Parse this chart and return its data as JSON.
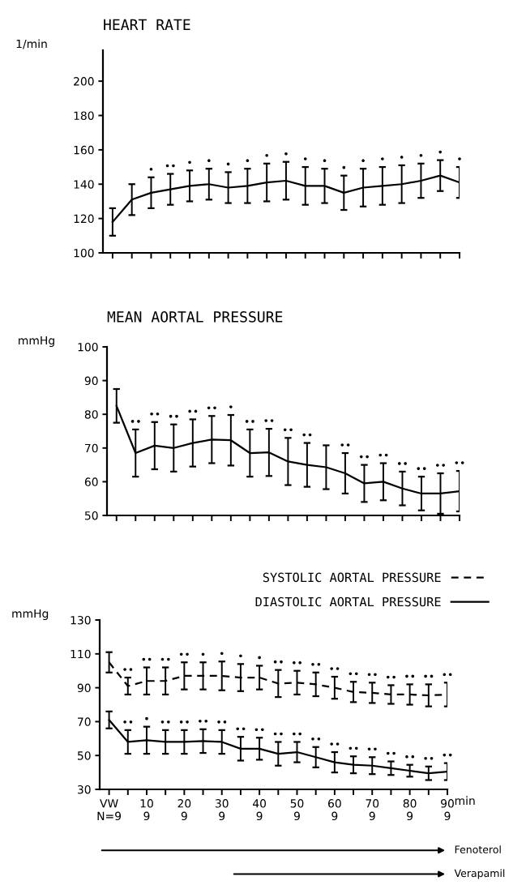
{
  "chart_data": [
    {
      "type": "line",
      "title": "HEART RATE",
      "ylabel": "1/min",
      "categories": [
        null,
        null,
        null,
        null,
        null,
        null,
        null,
        null,
        null,
        null,
        null,
        null,
        null,
        null,
        null,
        null,
        null,
        null,
        null
      ],
      "series": [
        {
          "color": "#000000",
          "line_style": "solid",
          "values": [
            118,
            131,
            135,
            137,
            139,
            140,
            138,
            139,
            141,
            142,
            139,
            139,
            135,
            138,
            139,
            140,
            142,
            145,
            141
          ],
          "errors": [
            8,
            9,
            9,
            9,
            9,
            9,
            9,
            10,
            11,
            11,
            11,
            10,
            10,
            11,
            11,
            11,
            10,
            9,
            9
          ],
          "value_labels": [
            null,
            null,
            "•",
            "••",
            "•",
            "•",
            "•",
            "•",
            "•",
            "•",
            "•",
            "•",
            "•",
            "•",
            "•",
            "•",
            "•",
            "•",
            "•"
          ]
        }
      ],
      "ylim": [
        100,
        218
      ],
      "yticks": [
        100,
        120,
        140,
        160,
        180,
        200
      ],
      "tick_labels": "y",
      "marker": "none",
      "grid": false,
      "legend": false
    },
    {
      "type": "line",
      "title": "MEAN AORTAL PRESSURE",
      "ylabel": "mmHg",
      "categories": [
        null,
        null,
        null,
        null,
        null,
        null,
        null,
        null,
        null,
        null,
        null,
        null,
        null,
        null,
        null,
        null,
        null,
        null,
        null
      ],
      "series": [
        {
          "color": "#000000",
          "line_style": "solid",
          "values": [
            82.5,
            68.5,
            70.7,
            70,
            71.5,
            72.5,
            72.3,
            68.5,
            68.7,
            66,
            65,
            64.3,
            62.5,
            59.5,
            60,
            58,
            56.5,
            56.5,
            57.2
          ],
          "errors": [
            5,
            7,
            7,
            7,
            7,
            7,
            7.5,
            7,
            7,
            7,
            6.5,
            6.5,
            6,
            5.5,
            5.5,
            5,
            5,
            6,
            6
          ],
          "value_labels": [
            null,
            "••",
            "••",
            "••",
            "••",
            "••",
            "•",
            "••",
            "••",
            "••",
            "••",
            null,
            "••",
            "••",
            "••",
            "••",
            "••",
            "••",
            "••"
          ]
        }
      ],
      "ylim": [
        50,
        100
      ],
      "yticks": [
        50,
        60,
        70,
        80,
        90,
        100
      ],
      "tick_labels": "y",
      "marker": "none",
      "grid": false,
      "legend": false
    },
    {
      "type": "line",
      "ylabel": "mmHg",
      "xlabel": "min",
      "categories": [
        "VW\nN=9",
        null,
        "10\n9",
        null,
        "20\n9",
        null,
        "30\n9",
        null,
        "40\n9",
        null,
        "50\n9",
        null,
        "60\n9",
        null,
        "70\n9",
        null,
        "80\n9",
        null,
        "90\n9"
      ],
      "series": [
        {
          "name": "SYSTOLIC AORTAL PRESSURE",
          "color": "#000000",
          "line_style": "dashed",
          "values": [
            105,
            91,
            94,
            94,
            97,
            97,
            97,
            96,
            96,
            92.5,
            93,
            92,
            90,
            87.5,
            87,
            86,
            86,
            85.5,
            86
          ],
          "errors": [
            6,
            5,
            8,
            8,
            8,
            8,
            8.5,
            8,
            7,
            8,
            7,
            7,
            6.5,
            6,
            6,
            5.5,
            6,
            6.5,
            7
          ],
          "value_labels": [
            null,
            "••",
            "••",
            "••",
            "••",
            "•",
            "•",
            "•",
            "•",
            "••",
            "••",
            "••",
            "••",
            "••",
            "••",
            "••",
            "••",
            "••",
            "••"
          ]
        },
        {
          "name": "DIASTOLIC AORTAL PRESSURE",
          "color": "#000000",
          "line_style": "solid",
          "values": [
            71,
            58,
            59,
            58,
            58,
            58.5,
            58,
            54,
            54,
            51,
            52,
            49,
            46,
            44.5,
            44,
            42.5,
            41,
            39.5,
            40.5
          ],
          "errors": [
            5,
            7,
            8,
            7,
            7,
            7,
            7,
            7,
            6.5,
            7,
            6,
            6,
            6,
            5,
            5,
            4,
            3.5,
            4,
            5
          ],
          "value_labels": [
            null,
            "••",
            "•",
            "••",
            "••",
            "••",
            "••",
            "••",
            "••",
            "••",
            "••",
            "••",
            "••",
            "••",
            "••",
            "••",
            "••",
            "••",
            "••"
          ]
        }
      ],
      "ylim": [
        30,
        130
      ],
      "yticks": [
        30,
        50,
        70,
        90,
        110,
        130
      ],
      "marker": "none",
      "grid": false,
      "legend": "top right",
      "annotations": [
        "Fenoterol",
        "Verapamil"
      ]
    }
  ]
}
